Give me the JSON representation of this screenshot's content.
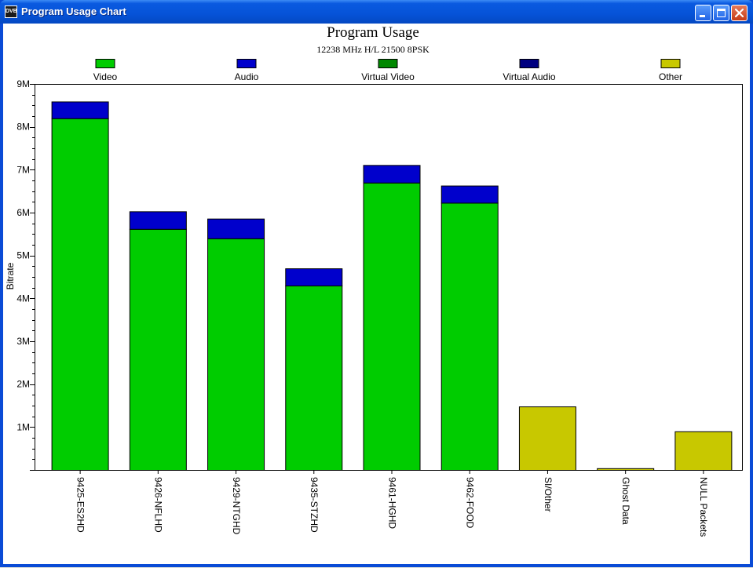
{
  "window": {
    "title": "Program Usage Chart",
    "icon_text": "DVB",
    "buttons": [
      "minimize-icon",
      "maximize-icon",
      "close-icon"
    ]
  },
  "chart_data": {
    "type": "bar",
    "stacked": true,
    "title": "Program Usage",
    "subtitle": "12238 MHz H/L 21500 8PSK",
    "ylabel": "Bitrate",
    "xlabel": "",
    "ylim": [
      0,
      9000000
    ],
    "y_ticks": [
      {
        "value": 1000000,
        "label": "1M"
      },
      {
        "value": 2000000,
        "label": "2M"
      },
      {
        "value": 3000000,
        "label": "3M"
      },
      {
        "value": 4000000,
        "label": "4M"
      },
      {
        "value": 5000000,
        "label": "5M"
      },
      {
        "value": 6000000,
        "label": "6M"
      },
      {
        "value": 7000000,
        "label": "7M"
      },
      {
        "value": 8000000,
        "label": "8M"
      },
      {
        "value": 9000000,
        "label": "9M"
      }
    ],
    "grid": false,
    "legend_position": "top",
    "categories": [
      "9425-ES2HD",
      "9426-NFLHD",
      "9429-NTGHD",
      "9435-STZHD",
      "9461-HGHD",
      "9462-FOOD",
      "SI/Other",
      "Ghost Data",
      "NULL Packets"
    ],
    "series": [
      {
        "name": "Video",
        "color": "#00cc00",
        "values": [
          8200000,
          5620000,
          5400000,
          4300000,
          6700000,
          6230000,
          0,
          0,
          0
        ]
      },
      {
        "name": "Audio",
        "color": "#0000cc",
        "values": [
          390000,
          410000,
          460000,
          400000,
          410000,
          400000,
          0,
          0,
          0
        ]
      },
      {
        "name": "Virtual Video",
        "color": "#008800",
        "values": [
          0,
          0,
          0,
          0,
          0,
          0,
          0,
          0,
          0
        ]
      },
      {
        "name": "Virtual Audio",
        "color": "#000080",
        "values": [
          0,
          0,
          0,
          0,
          0,
          0,
          0,
          0,
          0
        ]
      },
      {
        "name": "Other",
        "color": "#c8c800",
        "values": [
          0,
          0,
          0,
          0,
          0,
          0,
          1480000,
          40000,
          900000
        ]
      }
    ]
  }
}
